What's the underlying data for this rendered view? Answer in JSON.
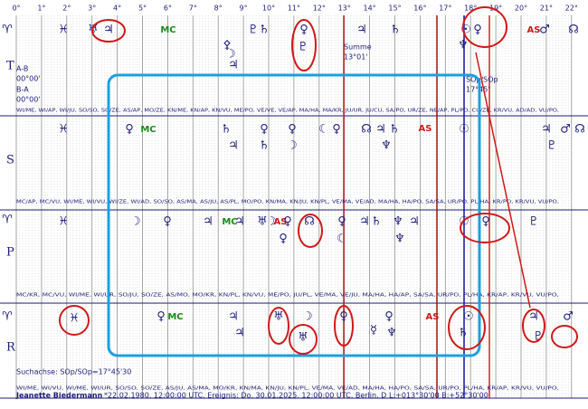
{
  "degree_labels": [
    "0°",
    "1°",
    "2°",
    "3°",
    "4°",
    "5°",
    "6°",
    "7°",
    "8°",
    "9°",
    "10°",
    "11°",
    "12°",
    "13°",
    "14°",
    "15°",
    "16°",
    "17°",
    "18°",
    "19°",
    "20°",
    "21°",
    "22°"
  ],
  "rows": [
    {
      "label": "T",
      "midpoints": "WI/ME, WI/AP, WI/JU, SO/SO, SO/ZE, AS/AP, MO/ZE, KN/ME, KN/AP, KN/VU, ME/PO, VE/VE, VE/AP, MA/HA, MA/KR, JU/UR, JU/CU, SA/PO, UR/ZE, NE/AP, PL/PO, CU/ZE, KR/VU, AD/AD, VU/PO,",
      "glyphs": [
        "♈",
        "♓",
        "♅",
        "♃",
        "MC",
        "☽",
        "♇",
        "♄",
        "♀",
        "♃",
        "♄",
        "☉",
        "♀",
        "AS",
        "♂",
        "☊",
        "⚴",
        "♃",
        "♇",
        "♆"
      ]
    },
    {
      "label": "S",
      "midpoints": "MC/AP, MC/VU, WI/ME, WI/VU, WI/ZE, WI/AD, SO/SO, AS/MA, AS/JU, AS/PL, MO/PO, KN/MA, KN/JU, KN/PL, VE/MA, VE/AD, MA/HA, HA/PO, SA/SA, UR/PO, PL/HA, KR/PO, KR/VU, VU/PO,",
      "glyphs": [
        "♓",
        "♀",
        "MC",
        "♄",
        "♀",
        "♀",
        "☾",
        "♀",
        "☊",
        "♃",
        "♄",
        "AS",
        "☉",
        "♃",
        "♂",
        "☊",
        "♃",
        "♄",
        "☽",
        "♆",
        "♇"
      ]
    },
    {
      "label": "P",
      "midpoints": "MC/KR, MC/VU, WI/ME, WI/UR, SO/JU, SO/ZE, AS/MO, MO/KR, KN/PL, KN/VU, ME/PO, JU/PL, VE/MA, VE/JU, MA/HA, HA/AP, SA/SA, UR/PO, PL/HA, KR/AP, KR/VU, VU/PO,",
      "glyphs": [
        "♈",
        "♓",
        "☽",
        "♀",
        "♃",
        "MC",
        "♃",
        "♅",
        "☽",
        "AS",
        "♀",
        "☊",
        "♀",
        "♃",
        "♄",
        "♆",
        "♃",
        "☉",
        "♀",
        "♇",
        "☾",
        "♆",
        "♀"
      ]
    },
    {
      "label": "R",
      "midpoints": "WI/ME, WI/VU, WI/ME, WI/UR, SO/SO, SO/ZE, AS/JU, AS/MA, MO/KR, KN/MA, KN/JU, KN/PL, VE/MA, VE/AD, MA/HA, HA/PO, SA/SA, UR/PO, PL/HA, KR/AP, KR/VU, VU/PO,",
      "glyphs": [
        "♈",
        "♓",
        "♀",
        "MC",
        "♃",
        "♃",
        "♅",
        "☽",
        "♀",
        "♀",
        "AS",
        "☉",
        "♄",
        "♃",
        "♂",
        "☿",
        "♆",
        "♅",
        "♇"
      ]
    }
  ],
  "notes": {
    "ab": "A-B",
    "ab_val": "00°00'",
    "ba": "B-A",
    "ba_val": "00°00'",
    "sum": "Summe",
    "sum_val": "13°01'",
    "axis": "SOp/SOp",
    "axis_val": "17°45'",
    "search": "Suchachse: SOp/SOp=17°45'30"
  },
  "footer": {
    "name": "Jeanette Biedermann",
    "info": "*22.02.1980, 12:00:00 UTC, Ereignis: Do, 30.01.2025, 12:00:00 UTC, Berlin, D",
    "coords": "L:+013°30'00 B:+52°30'00"
  }
}
